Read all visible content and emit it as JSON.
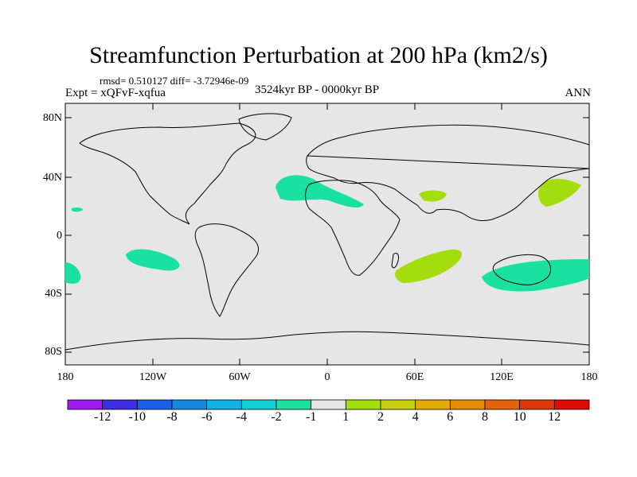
{
  "title": "Streamfunction Perturbation at 200 hPa (km2/s)",
  "stats": "rmsd= 0.510127 diff= -3.72946e-09",
  "experiment": "Expt = xQFvF-xqfua",
  "period": "3524kyr BP - 0000kyr BP",
  "season": "ANN",
  "lat_labels": [
    "80N",
    "40N",
    "0",
    "40S",
    "80S"
  ],
  "lon_labels": [
    "180",
    "120W",
    "60W",
    "0",
    "60E",
    "120E",
    "180"
  ],
  "colorbar": {
    "labels": [
      "-12",
      "-10",
      "-8",
      "-6",
      "-4",
      "-2",
      "-1",
      "1",
      "2",
      "4",
      "6",
      "8",
      "10",
      "12"
    ],
    "colors": [
      "#9c1bea",
      "#3d2fe0",
      "#1f5fe6",
      "#1788e0",
      "#12b2e4",
      "#10d0d2",
      "#19e2a0",
      "#e6e6e6",
      "#a4dd0e",
      "#c8d00c",
      "#e0ac08",
      "#e48a0a",
      "#e4620c",
      "#e0360c",
      "#e00c0c"
    ]
  },
  "colors": {
    "background": "#e6e6e6",
    "negative_anomaly": "#19e2a0",
    "positive_anomaly": "#a4dd0e"
  }
}
